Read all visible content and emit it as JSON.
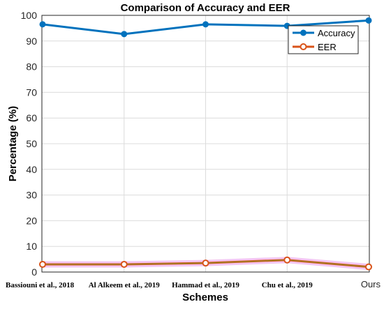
{
  "chart_data": {
    "type": "line",
    "title": "Comparison of Accuracy and EER",
    "xlabel": "Schemes",
    "ylabel": "Percentage (%)",
    "categories": [
      "Bassiouni et al., 2018",
      "Al Alkeem et al., 2019",
      "Hammad et al., 2019",
      "Chu et al., 2019",
      "Ours"
    ],
    "ylim": [
      0,
      100
    ],
    "yticks": [
      0,
      10,
      20,
      30,
      40,
      50,
      60,
      70,
      80,
      90,
      100
    ],
    "grid": true,
    "legend_position": "top-right",
    "series": [
      {
        "name": "Accuracy",
        "color": "#0072bd",
        "values": [
          96.5,
          92.7,
          96.5,
          95.9,
          98.0
        ]
      },
      {
        "name": "EER",
        "color": "#d95319",
        "values": [
          3.0,
          3.0,
          3.5,
          4.7,
          2.0
        ]
      }
    ]
  }
}
